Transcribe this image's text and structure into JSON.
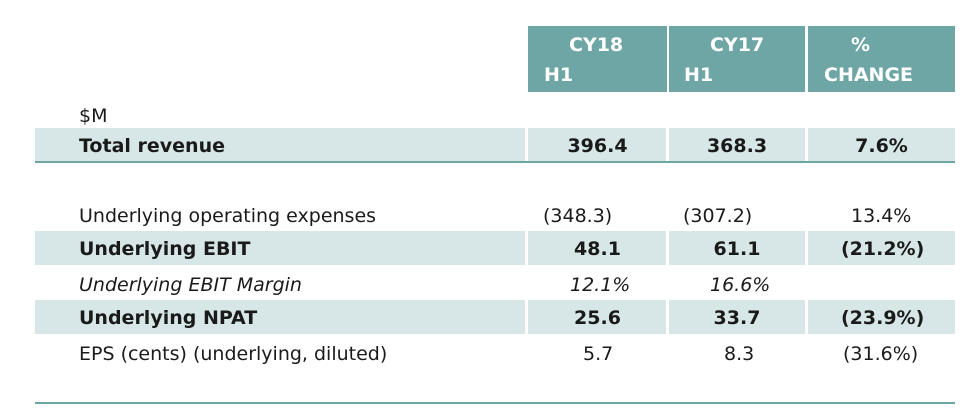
{
  "header": {
    "col1": {
      "line1": "CY18",
      "line2": "H1"
    },
    "col2": {
      "line1": "CY17",
      "line2": "H1"
    },
    "col3": {
      "line1": "%",
      "line2": "CHANGE"
    }
  },
  "unit_label": "$M",
  "rows": [
    {
      "label": "Total revenue",
      "cy18": "396.4",
      "cy17": "368.3",
      "change": "7.6%"
    },
    {
      "label": "Underlying operating expenses",
      "cy18": "(348.3)",
      "cy17": "(307.2)",
      "change": "13.4%"
    },
    {
      "label": "Underlying EBIT",
      "cy18": "48.1",
      "cy17": "61.1",
      "change": "(21.2%)"
    },
    {
      "label": "Underlying EBIT Margin",
      "cy18": "12.1%",
      "cy17": "16.6%",
      "change": ""
    },
    {
      "label": "Underlying NPAT",
      "cy18": "25.6",
      "cy17": "33.7",
      "change": "(23.9%)"
    },
    {
      "label": "EPS (cents) (underlying, diluted)",
      "cy18": "5.7",
      "cy17": "8.3",
      "change": "(31.6%)"
    }
  ],
  "colors": {
    "header_bg": "#6ea6a5",
    "band_bg": "#d7e6e6",
    "rule": "#6ea6a5"
  }
}
